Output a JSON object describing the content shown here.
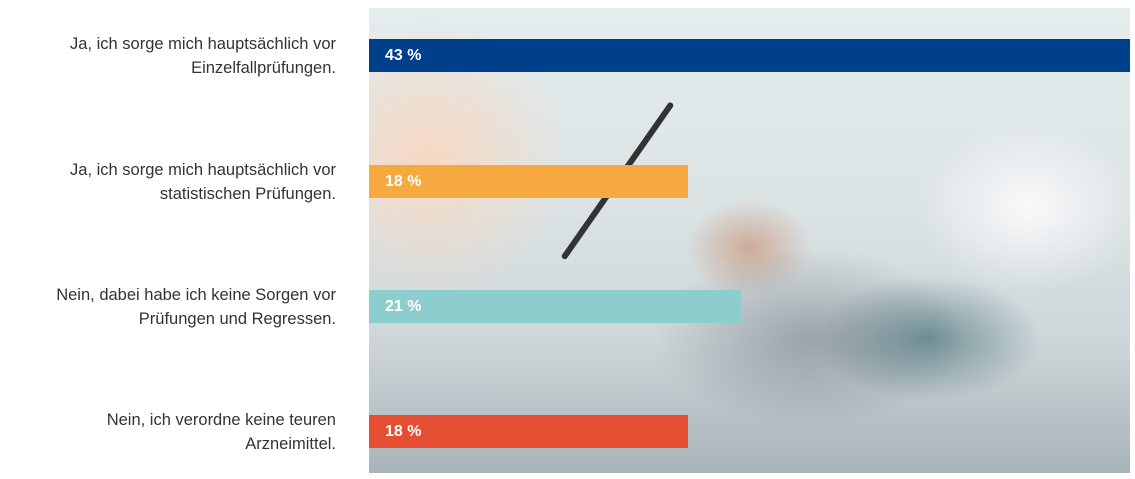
{
  "chart_data": {
    "type": "bar",
    "orientation": "horizontal",
    "categories": [
      "Ja, ich sorge mich hauptsächlich vor Einzelfallprüfungen.",
      "Ja, ich sorge mich hauptsächlich vor statistischen Prüfungen.",
      "Nein, dabei habe ich keine Sorgen vor Prüfungen und Regressen.",
      "Nein, ich verordne keine teuren Arzneimittel."
    ],
    "label_lines": [
      [
        "Ja, ich sorge mich hauptsächlich vor",
        "Einzelfallprüfungen."
      ],
      [
        "Ja, ich sorge mich hauptsächlich vor",
        "statistischen Prüfungen."
      ],
      [
        "Nein, dabei habe ich keine Sorgen vor",
        "Prüfungen und Regressen."
      ],
      [
        "Nein, ich verordne keine teuren",
        "Arzneimittel."
      ]
    ],
    "values": [
      43,
      18,
      21,
      18
    ],
    "value_labels": [
      "43 %",
      "18 %",
      "21 %",
      "18 %"
    ],
    "colors": [
      "#003f8a",
      "#f5a93f",
      "#8ccdcd",
      "#e64e34"
    ],
    "xlim": [
      0,
      43
    ],
    "title": "",
    "xlabel": "",
    "ylabel": "",
    "grid": false
  }
}
